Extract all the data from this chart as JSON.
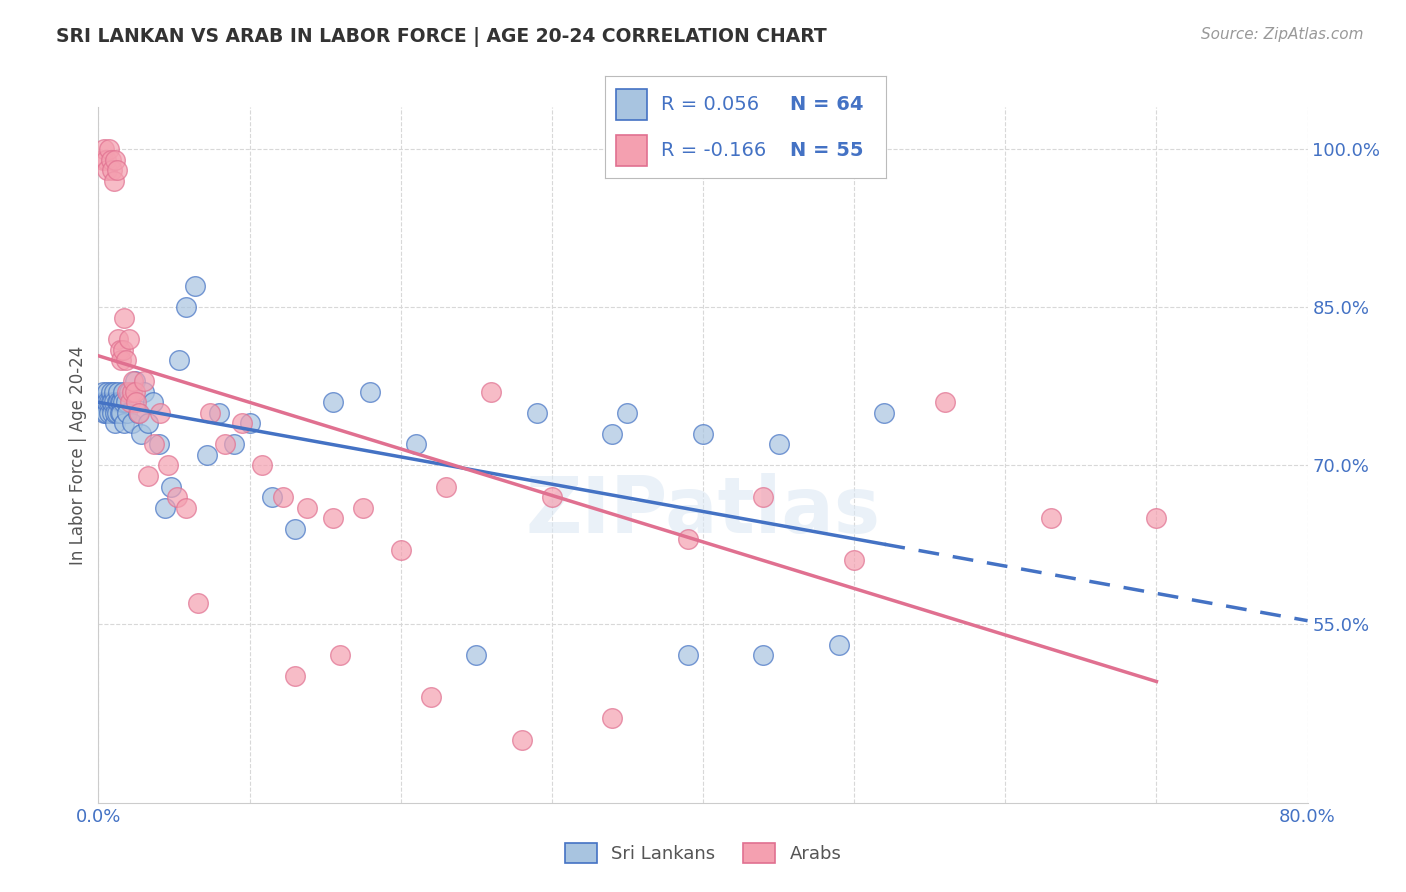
{
  "title": "SRI LANKAN VS ARAB IN LABOR FORCE | AGE 20-24 CORRELATION CHART",
  "source": "Source: ZipAtlas.com",
  "ylabel": "In Labor Force | Age 20-24",
  "xmin": 0.0,
  "xmax": 0.8,
  "ymin": 0.38,
  "ymax": 1.04,
  "xtick_positions": [
    0.0,
    0.1,
    0.2,
    0.3,
    0.4,
    0.5,
    0.6,
    0.7,
    0.8
  ],
  "xticklabels": [
    "0.0%",
    "",
    "",
    "",
    "",
    "",
    "",
    "",
    "80.0%"
  ],
  "ytick_positions": [
    0.55,
    0.7,
    0.85,
    1.0
  ],
  "yticklabels": [
    "55.0%",
    "70.0%",
    "85.0%",
    "100.0%"
  ],
  "legend_r_sri": "R = 0.056",
  "legend_n_sri": "N = 64",
  "legend_r_arab": "R = -0.166",
  "legend_n_arab": "N = 55",
  "sri_color": "#a8c4e0",
  "arab_color": "#f4a0b0",
  "sri_line_color": "#4472c4",
  "arab_line_color": "#e07090",
  "watermark": "ZIPatlas",
  "sri_x": [
    0.002,
    0.003,
    0.004,
    0.004,
    0.005,
    0.005,
    0.006,
    0.006,
    0.007,
    0.007,
    0.008,
    0.008,
    0.009,
    0.009,
    0.01,
    0.01,
    0.011,
    0.011,
    0.012,
    0.012,
    0.013,
    0.013,
    0.014,
    0.014,
    0.015,
    0.015,
    0.016,
    0.016,
    0.017,
    0.018,
    0.019,
    0.02,
    0.022,
    0.024,
    0.026,
    0.028,
    0.03,
    0.033,
    0.036,
    0.04,
    0.044,
    0.048,
    0.053,
    0.058,
    0.064,
    0.072,
    0.08,
    0.09,
    0.1,
    0.115,
    0.13,
    0.155,
    0.18,
    0.21,
    0.25,
    0.29,
    0.34,
    0.39,
    0.44,
    0.49,
    0.35,
    0.4,
    0.45,
    0.52
  ],
  "sri_y": [
    0.76,
    0.77,
    0.75,
    0.76,
    0.76,
    0.75,
    0.77,
    0.76,
    0.75,
    0.76,
    0.77,
    0.76,
    0.75,
    0.76,
    0.77,
    0.76,
    0.74,
    0.75,
    0.76,
    0.75,
    0.77,
    0.76,
    0.76,
    0.75,
    0.76,
    0.75,
    0.77,
    0.76,
    0.74,
    0.76,
    0.75,
    0.77,
    0.74,
    0.78,
    0.75,
    0.73,
    0.77,
    0.74,
    0.76,
    0.72,
    0.66,
    0.68,
    0.8,
    0.85,
    0.87,
    0.71,
    0.75,
    0.72,
    0.74,
    0.67,
    0.64,
    0.76,
    0.77,
    0.72,
    0.52,
    0.75,
    0.73,
    0.52,
    0.52,
    0.53,
    0.75,
    0.73,
    0.72,
    0.75
  ],
  "arab_x": [
    0.003,
    0.004,
    0.005,
    0.006,
    0.007,
    0.008,
    0.009,
    0.01,
    0.011,
    0.012,
    0.013,
    0.014,
    0.015,
    0.016,
    0.017,
    0.018,
    0.019,
    0.02,
    0.021,
    0.022,
    0.023,
    0.024,
    0.025,
    0.027,
    0.03,
    0.033,
    0.037,
    0.041,
    0.046,
    0.052,
    0.058,
    0.066,
    0.074,
    0.084,
    0.095,
    0.108,
    0.122,
    0.138,
    0.155,
    0.175,
    0.2,
    0.23,
    0.26,
    0.3,
    0.34,
    0.39,
    0.44,
    0.5,
    0.56,
    0.63,
    0.7,
    0.13,
    0.16,
    0.22,
    0.28
  ],
  "arab_y": [
    0.99,
    1.0,
    0.99,
    0.98,
    1.0,
    0.99,
    0.98,
    0.97,
    0.99,
    0.98,
    0.82,
    0.81,
    0.8,
    0.81,
    0.84,
    0.8,
    0.77,
    0.82,
    0.76,
    0.77,
    0.78,
    0.77,
    0.76,
    0.75,
    0.78,
    0.69,
    0.72,
    0.75,
    0.7,
    0.67,
    0.66,
    0.57,
    0.75,
    0.72,
    0.74,
    0.7,
    0.67,
    0.66,
    0.65,
    0.66,
    0.62,
    0.68,
    0.77,
    0.67,
    0.46,
    0.63,
    0.67,
    0.61,
    0.76,
    0.65,
    0.65,
    0.5,
    0.52,
    0.48,
    0.44
  ]
}
